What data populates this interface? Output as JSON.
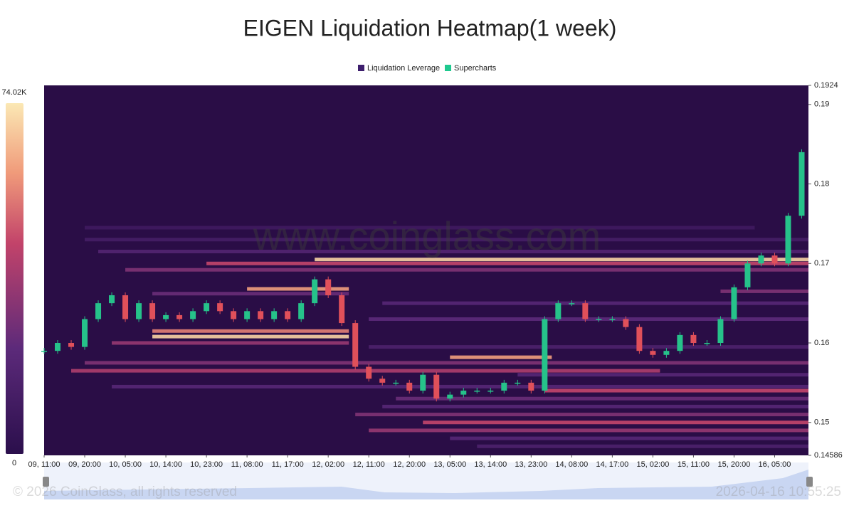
{
  "chart_data": {
    "type": "heatmap",
    "title": "EIGEN Liquidation Heatmap(1 week)",
    "legend": [
      {
        "name": "Liquidation Leverage",
        "color": "#3d1e6d"
      },
      {
        "name": "Supercharts",
        "color": "#1fc98f"
      }
    ],
    "colorbar": {
      "min": 0,
      "max": 74020,
      "max_label": "74.02K",
      "min_label": "0"
    },
    "watermark": "www.coinglass.com",
    "footer": "© 2026 CoinGlass, all rights reserved",
    "timestamp": "2026-04-16 10:55:25",
    "ylim": [
      0.14586,
      0.1924
    ],
    "yticks": [
      0.1924,
      0.19,
      0.18,
      0.17,
      0.16,
      0.15,
      0.14586
    ],
    "xlim": [
      0,
      56.5
    ],
    "xticks": [
      {
        "value": 0,
        "label": "09, 11:00"
      },
      {
        "value": 3,
        "label": "09, 20:00"
      },
      {
        "value": 6,
        "label": "10, 05:00"
      },
      {
        "value": 9,
        "label": "10, 14:00"
      },
      {
        "value": 12,
        "label": "10, 23:00"
      },
      {
        "value": 15,
        "label": "11, 08:00"
      },
      {
        "value": 18,
        "label": "11, 17:00"
      },
      {
        "value": 21,
        "label": "12, 02:00"
      },
      {
        "value": 24,
        "label": "12, 11:00"
      },
      {
        "value": 27,
        "label": "12, 20:00"
      },
      {
        "value": 30,
        "label": "13, 05:00"
      },
      {
        "value": 33,
        "label": "13, 14:00"
      },
      {
        "value": 36,
        "label": "13, 23:00"
      },
      {
        "value": 39,
        "label": "14, 08:00"
      },
      {
        "value": 42,
        "label": "14, 17:00"
      },
      {
        "value": 45,
        "label": "15, 02:00"
      },
      {
        "value": 48,
        "label": "15, 11:00"
      },
      {
        "value": 51,
        "label": "15, 20:00"
      },
      {
        "value": 54,
        "label": "16, 05:00"
      }
    ],
    "up_color": "#26c28a",
    "down_color": "#e0505a",
    "closes": [
      0.159,
      0.16,
      0.1595,
      0.163,
      0.165,
      0.166,
      0.163,
      0.165,
      0.163,
      0.1635,
      0.163,
      0.164,
      0.165,
      0.164,
      0.163,
      0.164,
      0.163,
      0.164,
      0.163,
      0.165,
      0.168,
      0.166,
      0.1625,
      0.157,
      0.1555,
      0.155,
      0.155,
      0.154,
      0.156,
      0.153,
      0.1535,
      0.154,
      0.154,
      0.154,
      0.155,
      0.155,
      0.154,
      0.163,
      0.165,
      0.165,
      0.163,
      0.163,
      0.163,
      0.162,
      0.159,
      0.1585,
      0.159,
      0.161,
      0.16,
      0.16,
      0.163,
      0.167,
      0.17,
      0.171,
      0.17,
      0.176,
      0.184
    ],
    "levels": [
      {
        "price": 0.1705,
        "value": 70000,
        "from": 20,
        "to": 56
      },
      {
        "price": 0.17,
        "value": 45000,
        "from": 12,
        "to": 56
      },
      {
        "price": 0.1692,
        "value": 30000,
        "from": 6,
        "to": 56
      },
      {
        "price": 0.1715,
        "value": 18000,
        "from": 4,
        "to": 56
      },
      {
        "price": 0.173,
        "value": 12000,
        "from": 3,
        "to": 56
      },
      {
        "price": 0.1745,
        "value": 9000,
        "from": 3,
        "to": 52
      },
      {
        "price": 0.1668,
        "value": 60000,
        "from": 15,
        "to": 22
      },
      {
        "price": 0.1662,
        "value": 25000,
        "from": 8,
        "to": 22
      },
      {
        "price": 0.1665,
        "value": 30000,
        "from": 50,
        "to": 56
      },
      {
        "price": 0.165,
        "value": 20000,
        "from": 25,
        "to": 56
      },
      {
        "price": 0.163,
        "value": 22000,
        "from": 24,
        "to": 56
      },
      {
        "price": 0.1615,
        "value": 55000,
        "from": 8,
        "to": 22
      },
      {
        "price": 0.1608,
        "value": 70000,
        "from": 8,
        "to": 22
      },
      {
        "price": 0.16,
        "value": 35000,
        "from": 5,
        "to": 22
      },
      {
        "price": 0.1595,
        "value": 15000,
        "from": 24,
        "to": 56
      },
      {
        "price": 0.1582,
        "value": 60000,
        "from": 30,
        "to": 37
      },
      {
        "price": 0.1575,
        "value": 30000,
        "from": 3,
        "to": 56
      },
      {
        "price": 0.1565,
        "value": 40000,
        "from": 2,
        "to": 45
      },
      {
        "price": 0.156,
        "value": 20000,
        "from": 35,
        "to": 56
      },
      {
        "price": 0.1545,
        "value": 20000,
        "from": 5,
        "to": 56
      },
      {
        "price": 0.154,
        "value": 45000,
        "from": 37,
        "to": 56
      },
      {
        "price": 0.153,
        "value": 25000,
        "from": 26,
        "to": 56
      },
      {
        "price": 0.152,
        "value": 20000,
        "from": 25,
        "to": 56
      },
      {
        "price": 0.151,
        "value": 30000,
        "from": 23,
        "to": 56
      },
      {
        "price": 0.15,
        "value": 45000,
        "from": 28,
        "to": 56
      },
      {
        "price": 0.149,
        "value": 35000,
        "from": 24,
        "to": 56
      },
      {
        "price": 0.148,
        "value": 20000,
        "from": 30,
        "to": 56
      },
      {
        "price": 0.147,
        "value": 15000,
        "from": 32,
        "to": 56
      }
    ]
  }
}
